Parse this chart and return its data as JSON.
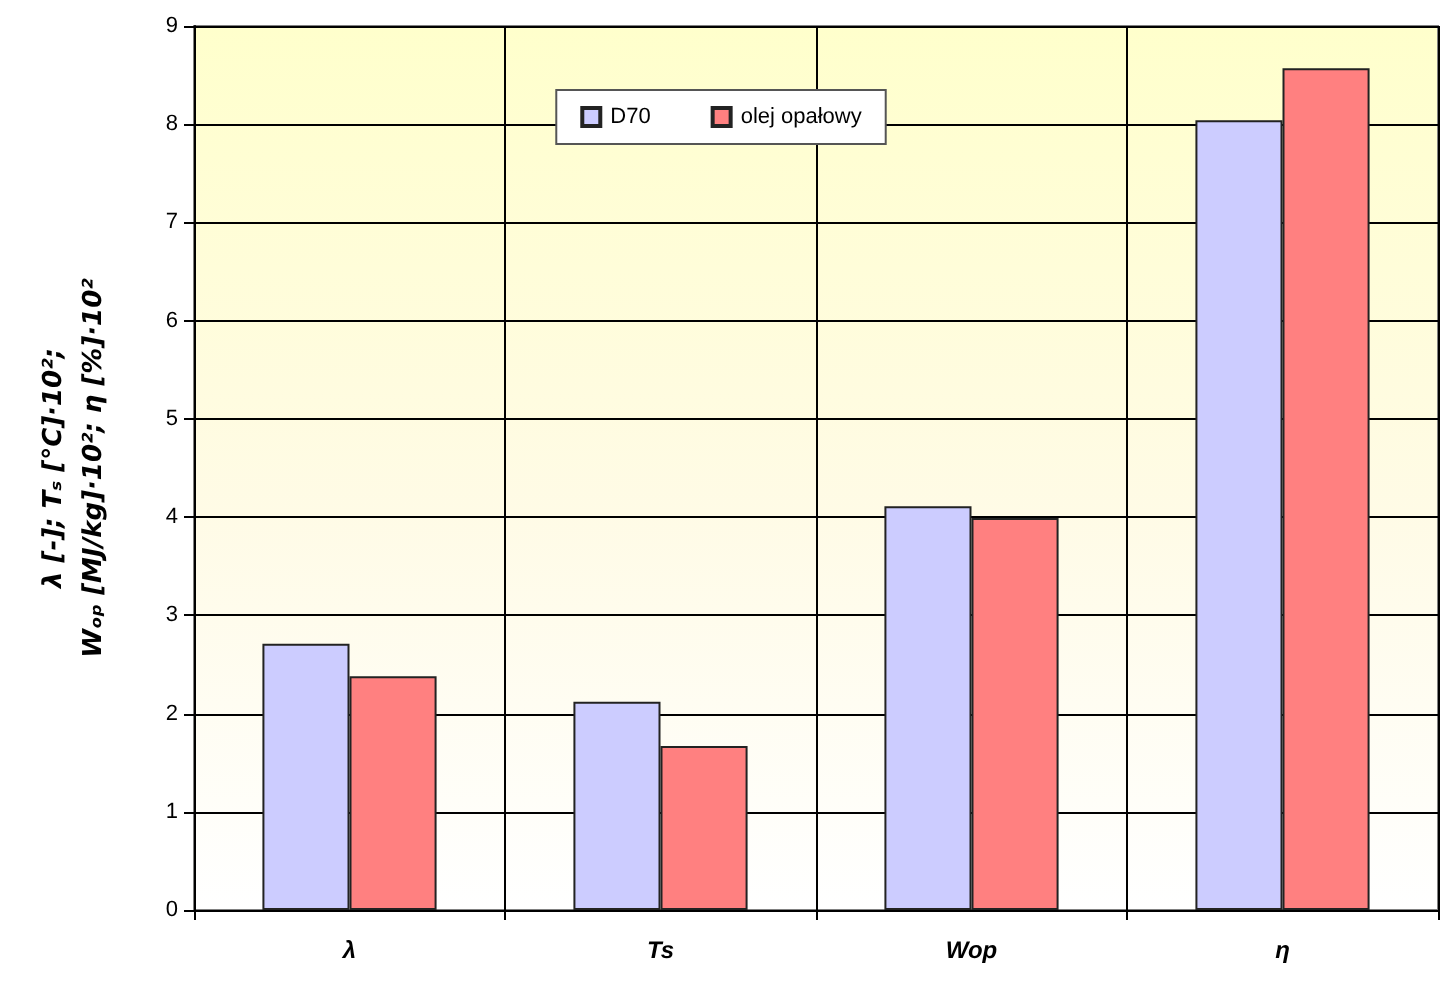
{
  "chart_data": {
    "type": "bar",
    "ylabel": "λ [-]; Tₛ [°C]·10²;\nWₒₚ [MJ/kg]·10²; η [%]·10²",
    "categories": [
      "λ",
      "Ts",
      "Wop",
      "η"
    ],
    "series": [
      {
        "name": "D70",
        "color": "#ccccff",
        "values": [
          2.71,
          2.12,
          4.11,
          8.04
        ]
      },
      {
        "name": "olej opałowy",
        "color": "#ff8080",
        "values": [
          2.38,
          1.67,
          3.99,
          8.57
        ]
      }
    ],
    "ylim": [
      0,
      9
    ],
    "yticks": [
      0,
      1,
      2,
      3,
      4,
      5,
      6,
      7,
      8,
      9
    ],
    "grid": true,
    "legend": "top"
  }
}
